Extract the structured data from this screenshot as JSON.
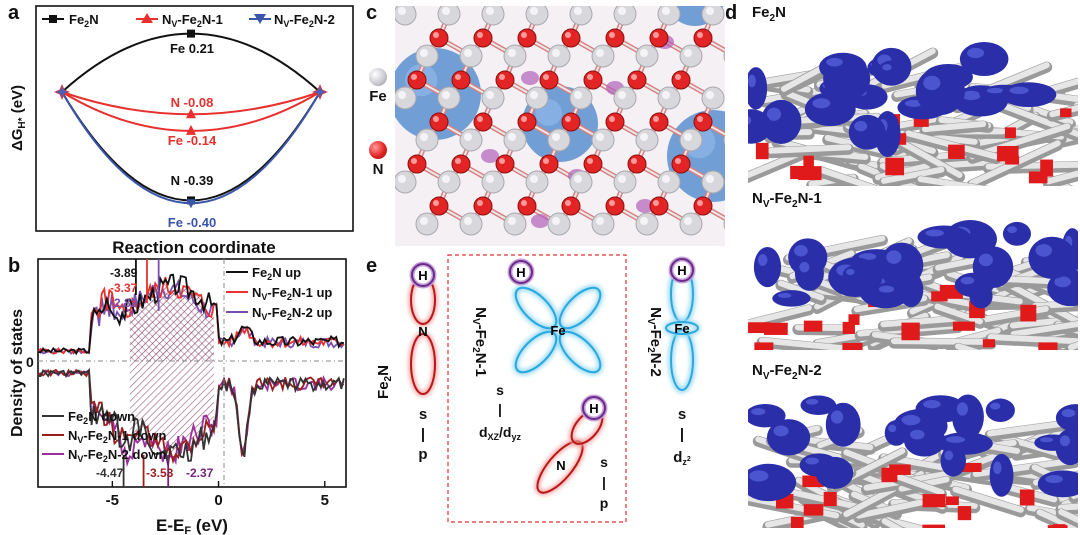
{
  "panels": {
    "a": "a",
    "b": "b",
    "c": "c",
    "d": "d",
    "e": "e"
  },
  "panel_a": {
    "ylabel": "ΔG",
    "ylabel_sub": "H*",
    "ylabel_unit": " (eV)",
    "xlabel": "Reaction coordinate",
    "legend": [
      {
        "base": "Fe",
        "sub": "2",
        "tail": "N",
        "color": "#111111",
        "marker": "square"
      },
      {
        "base": "N",
        "sup": "V",
        "mid": "-Fe",
        "sub": "2",
        "tail": "N-1",
        "color": "#e8312f",
        "marker": "triangle-up"
      },
      {
        "base": "N",
        "sup": "V",
        "mid": "-Fe",
        "sub": "2",
        "tail": "N-2",
        "color": "#3a56a8",
        "marker": "triangle-down"
      }
    ],
    "annotations": [
      {
        "text": "Fe 0.21",
        "color": "#111111"
      },
      {
        "text": "N -0.08",
        "color": "#e8312f"
      },
      {
        "text": "Fe -0.14",
        "color": "#e8312f"
      },
      {
        "text": "N -0.39",
        "color": "#111111"
      },
      {
        "text": "Fe -0.40",
        "color": "#3a56a8"
      }
    ]
  },
  "chart_data": [
    {
      "type": "line",
      "xlabel": "Reaction coordinate",
      "ylabel": "ΔGH* (eV)",
      "series": [
        {
          "name": "Fe2N",
          "site": "Fe",
          "x": [
            0,
            1,
            2
          ],
          "values": [
            0,
            0.21,
            0
          ],
          "color": "#111111"
        },
        {
          "name": "Fe2N",
          "site": "N",
          "x": [
            0,
            1,
            2
          ],
          "values": [
            0,
            -0.39,
            0
          ],
          "color": "#111111"
        },
        {
          "name": "NV-Fe2N-1",
          "site": "N",
          "x": [
            0,
            1,
            2
          ],
          "values": [
            0,
            -0.08,
            0
          ],
          "color": "#e8312f"
        },
        {
          "name": "NV-Fe2N-1",
          "site": "Fe",
          "x": [
            0,
            1,
            2
          ],
          "values": [
            0,
            -0.14,
            0
          ],
          "color": "#e8312f"
        },
        {
          "name": "NV-Fe2N-2",
          "site": "Fe",
          "x": [
            0,
            1,
            2
          ],
          "values": [
            0,
            -0.4,
            0
          ],
          "color": "#3a56a8"
        }
      ],
      "ylim": [
        -0.5,
        0.3
      ]
    },
    {
      "type": "area",
      "xlabel": "E-EF (eV)",
      "ylabel": "Density of states",
      "x_ticks": [
        "-5",
        "0",
        "5"
      ],
      "y_ticks": [
        "0"
      ],
      "xlim": [
        -8.5,
        6
      ],
      "d_band_centers_up": [
        {
          "series": "Fe2N up",
          "value": -3.89,
          "color": "#111111"
        },
        {
          "series": "NV-Fe2N-1 up",
          "value": -3.37,
          "color": "#e8312f"
        },
        {
          "series": "NV-Fe2N-2 up",
          "value": -2.82,
          "color": "#7a4fb0"
        }
      ],
      "d_band_centers_down": [
        {
          "series": "Fe2N down",
          "value": -4.47,
          "color": "#333333"
        },
        {
          "series": "NV-Fe2N-1 down",
          "value": -3.53,
          "color": "#9b1f1f"
        },
        {
          "series": "NV-Fe2N-2 down",
          "value": -2.37,
          "color": "#7a1f7a"
        }
      ],
      "legend_up": [
        {
          "base": "Fe",
          "sub": "2",
          "tail": "N up",
          "color": "#111111"
        },
        {
          "base": "N",
          "sup": "V",
          "mid": "-Fe",
          "sub": "2",
          "tail": "N-1 up",
          "color": "#e8312f"
        },
        {
          "base": "N",
          "sup": "V",
          "mid": "-Fe",
          "sub": "2",
          "tail": "N-2 up",
          "color": "#7a4fb0"
        }
      ],
      "legend_down": [
        {
          "base": "Fe",
          "sub": "2",
          "tail": "N down",
          "color": "#333333"
        },
        {
          "base": "N",
          "sup": "V",
          "mid": "-Fe",
          "sub": "2",
          "tail": "N-1 down",
          "color": "#9b1f1f"
        },
        {
          "base": "N",
          "sup": "V",
          "mid": "-Fe",
          "sub": "2",
          "tail": "N-2 down",
          "color": "#9b2f9b"
        }
      ]
    }
  ],
  "panel_b": {
    "ylabel": "Density of states",
    "xlabel_base": "E-E",
    "xlabel_sub": "F",
    "xlabel_unit": " (eV)",
    "zero_label": "0",
    "up_labels": [
      {
        "text": "-3.89",
        "color": "#111111"
      },
      {
        "text": "-3.37",
        "color": "#e8312f"
      },
      {
        "text": "-2.82",
        "color": "#7a4fb0"
      }
    ],
    "down_labels": [
      {
        "text": "-4.47",
        "color": "#333333"
      },
      {
        "text": "-3.53",
        "color": "#9b1f1f"
      },
      {
        "text": "-2.37",
        "color": "#7a1f7a"
      }
    ]
  },
  "panel_c": {
    "legend": [
      {
        "element": "Fe",
        "color": "#d8d8dc"
      },
      {
        "element": "N",
        "color": "#e32424"
      }
    ]
  },
  "panel_d": {
    "rows": [
      {
        "base": "Fe",
        "sub": "2",
        "tail": "N"
      },
      {
        "base": "N",
        "sup": "V",
        "mid": "-Fe",
        "sub": "2",
        "tail": "N-1"
      },
      {
        "base": "N",
        "sup": "V",
        "mid": "-Fe",
        "sub": "2",
        "tail": "N-2"
      }
    ],
    "surface_color": "#c9c9c9",
    "charge_color": "#2a2ea8",
    "nitrogen_color": "#e0191b"
  },
  "panel_e": {
    "col1": {
      "base": "Fe",
      "sub": "2",
      "tail": "N",
      "atom_h": "H",
      "atom": "N",
      "bond_top": "s",
      "bond_bar": "|",
      "bond_bot": "p"
    },
    "col2": {
      "base": "N",
      "sup": "V",
      "mid": "-Fe",
      "sub": "2",
      "tail": "N-1",
      "atom_h": "H",
      "atom_fe": "Fe",
      "bond1_top": "s",
      "bond1_bar": "|",
      "bond1_bot": "d",
      "bond1_sub1": "XZ",
      "bond1_slash": "/d",
      "bond1_sub2": "yz",
      "atom_h2": "H",
      "atom_n": "N",
      "bond2_top": "s",
      "bond2_bar": "|",
      "bond2_bot": "p"
    },
    "col3": {
      "base": "N",
      "sup": "V",
      "mid": "-Fe",
      "sub": "2",
      "tail": "N-2",
      "atom_h": "H",
      "atom_fe": "Fe",
      "bond_top": "s",
      "bond_bar": "|",
      "bond_bot": "d",
      "bond_sub": "z",
      "bond_sup": "2"
    }
  }
}
